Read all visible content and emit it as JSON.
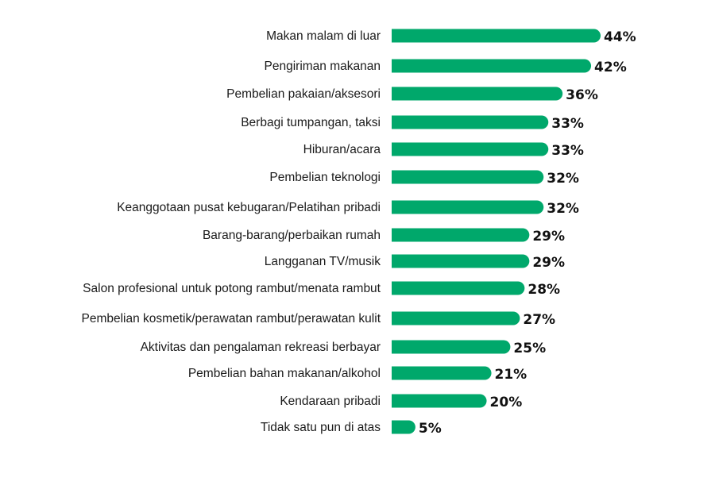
{
  "chart_data": {
    "type": "bar",
    "orientation": "horizontal",
    "title": "",
    "xlabel": "",
    "ylabel": "",
    "unit": "%",
    "xlim": [
      0,
      44
    ],
    "grid": false,
    "legend": "none",
    "bar_color": "#00a86b",
    "categories": [
      "Makan malam di luar",
      "Pengiriman makanan",
      "Pembelian pakaian/aksesori",
      "Berbagi tumpangan, taksi",
      "Hiburan/acara",
      "Pembelian teknologi",
      "Keanggotaan pusat kebugaran/Pelatihan pribadi",
      "Barang-barang/perbaikan rumah",
      "Langganan TV/musik",
      "Salon profesional untuk potong rambut/menata rambut",
      "Pembelian kosmetik/perawatan rambut/perawatan kulit",
      "Aktivitas dan pengalaman rekreasi berbayar",
      "Pembelian bahan makanan/alkohol",
      "Kendaraan pribadi",
      "Tidak satu pun di atas"
    ],
    "values": [
      44,
      42,
      36,
      33,
      33,
      32,
      32,
      29,
      29,
      28,
      27,
      25,
      21,
      20,
      5
    ],
    "value_labels": [
      "44%",
      "42%",
      "36%",
      "33%",
      "33%",
      "32%",
      "32%",
      "29%",
      "29%",
      "28%",
      "27%",
      "25%",
      "21%",
      "20%",
      "5%"
    ]
  }
}
